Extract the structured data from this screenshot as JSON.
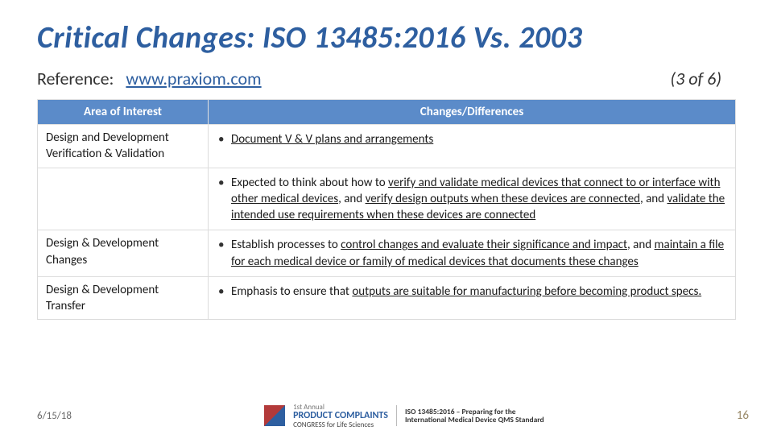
{
  "title": "Critical Changes: ISO 13485:2016 Vs. 2003",
  "reference_label": "Reference:",
  "reference_link": "www.praxiom.com",
  "page_of": "(3 of 6)",
  "table": {
    "headers": [
      "Area of Interest",
      "Changes/Differences"
    ],
    "rows": [
      {
        "area": "Design and Development Verification & Validation",
        "bullets": [
          {
            "plain": "",
            "underlined": "Document V & V plans and arrangements",
            "tail": ""
          }
        ]
      },
      {
        "area": "",
        "bullets": [
          {
            "plain": "Expected to think about how to ",
            "underlined": "verify and validate medical devices that connect to or interface with other medical devices",
            "tail_plain": ", and ",
            "u2": "verify design outputs when these devices are connected",
            "tail2": ", and ",
            "u3": "validate the intended use requirements when these devices are connected"
          }
        ]
      },
      {
        "area": "Design & Development Changes",
        "bullets": [
          {
            "plain": "Establish processes to ",
            "underlined": "control changes and evaluate their significance and impact",
            "tail_plain": ", and ",
            "u2": "maintain a file for each medical device or family of medical devices that documents these changes"
          }
        ]
      },
      {
        "area": "Design & Development Transfer",
        "bullets": [
          {
            "plain": "Emphasis to ensure that ",
            "underlined": "outputs are suitable for manufacturing before becoming product specs."
          }
        ]
      }
    ]
  },
  "footer": {
    "date": "6/15/18",
    "logo_top": "1st Annual",
    "logo_main": "PRODUCT COMPLAINTS",
    "logo_sub": "CONGRESS for Life Sciences",
    "logo_right1": "ISO 13485:2016 – Preparing for the",
    "logo_right2": "International Medical Device QMS Standard",
    "page_number": "16"
  },
  "colors": {
    "title": "#2e5fa0",
    "header_bg": "#5b8bc9",
    "border": "#dcdcdc"
  }
}
